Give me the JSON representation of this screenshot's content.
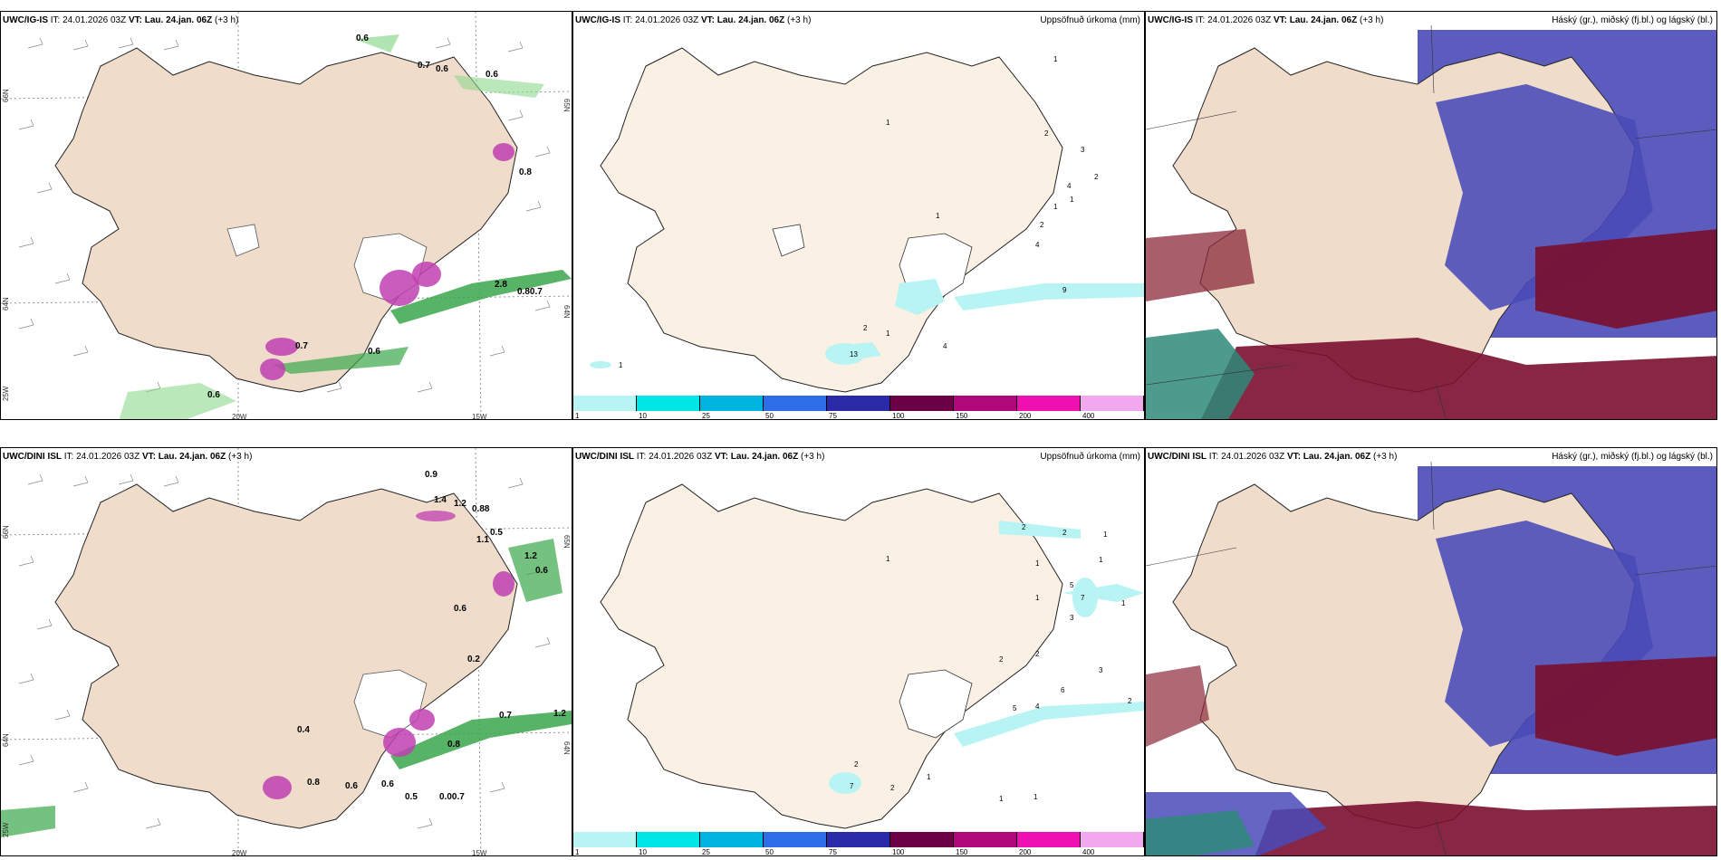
{
  "rows": [
    {
      "model": "UWC/IG-IS",
      "it_label": "IT:",
      "it_value": "24.01.2026 03Z",
      "vt_label": "VT:",
      "vt_value": "Lau. 24.jan. 06Z",
      "lead": "(+3 h)",
      "wind_values": [
        "0.6",
        "0.7",
        "0.6",
        "0.6",
        "0.8",
        "2.8",
        "0.80.7",
        "0.7",
        "0.6",
        "0.6"
      ],
      "precip_values": [
        "1",
        "2",
        "3",
        "2",
        "4",
        "1",
        "1",
        "2",
        "4",
        "1",
        "9",
        "2",
        "1",
        "13",
        "4",
        "1",
        "1"
      ]
    },
    {
      "model": "UWC/DINI ISL",
      "it_label": "IT:",
      "it_value": "24.01.2026 03Z",
      "vt_label": "VT:",
      "vt_value": "Lau. 24.jan. 06Z",
      "lead": "(+3 h)",
      "wind_values": [
        "0.9",
        "1.4",
        "1.2",
        "0.88",
        "1.1",
        "0.5",
        "1.2",
        "0.6",
        "0.6",
        "0.2",
        "0.4",
        "0.7",
        "1.2",
        "0.8",
        "0.6",
        "0.6",
        "0.5",
        "0.00.7",
        "0.8"
      ],
      "precip_values": [
        "2",
        "2",
        "1",
        "1",
        "1",
        "5",
        "7",
        "3",
        "1",
        "1",
        "2",
        "2",
        "3",
        "6",
        "5",
        "4",
        "2",
        "2",
        "7",
        "2",
        "1",
        "1",
        "1",
        "1"
      ]
    }
  ],
  "precip_title": "Uppsöfnuð úrkoma (mm)",
  "cloud_title": "Háský (gr.), miðský (fj.bl.) og lágský (bl.)",
  "grid_labels": {
    "lat66": "66N",
    "lat64": "64N",
    "lat65e": "65N",
    "lon25": "25W",
    "lon20": "20W",
    "lon15": "15W",
    "lat64e": "64N"
  },
  "colorbar": {
    "ticks": [
      "1",
      "10",
      "25",
      "50",
      "75",
      "100",
      "150",
      "200",
      "400"
    ],
    "colors": [
      "#b8f4f4",
      "#00e5e5",
      "#00b4e0",
      "#2d6ee8",
      "#2a2aa8",
      "#6b0046",
      "#b0087a",
      "#ee10b0",
      "#f2a8ee"
    ]
  },
  "colors": {
    "land": "#efdccb",
    "land_precip": "#fbf0e4",
    "wind_green": "#3aa64a",
    "precip_cyan": "#b8f4f4",
    "high_cloud": "#7a1030",
    "mid_cloud": "#4a4ab8",
    "magenta": "#c040b0"
  }
}
